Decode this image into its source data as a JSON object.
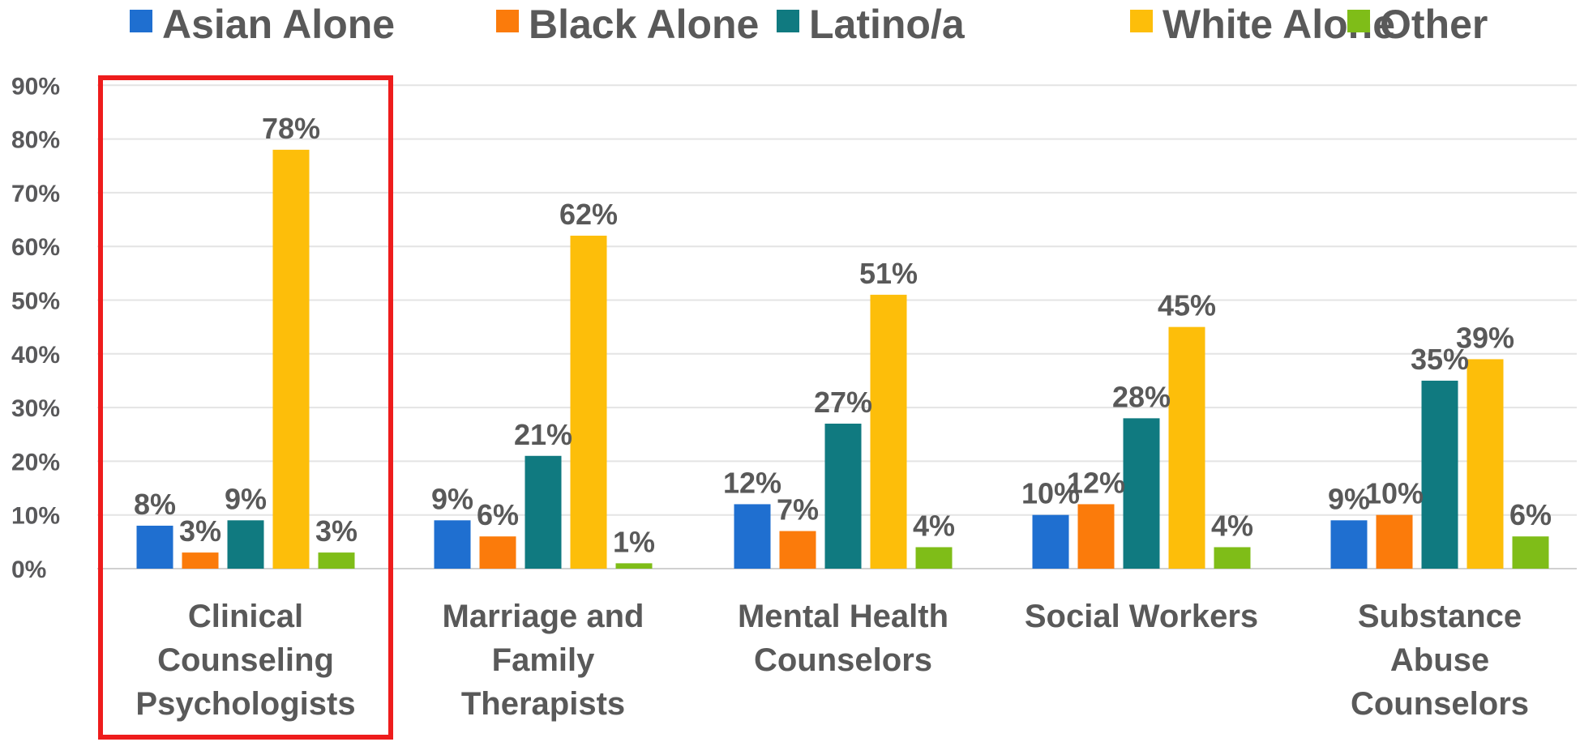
{
  "chart_data": {
    "type": "bar",
    "title": "",
    "xlabel": "",
    "ylabel": "",
    "ylim": [
      0,
      90
    ],
    "yticks": [
      "0%",
      "10%",
      "20%",
      "30%",
      "40%",
      "50%",
      "60%",
      "70%",
      "80%",
      "90%"
    ],
    "grid": true,
    "legend_position": "top",
    "highlighted_category": "Clinical Counseling Psychologists",
    "highlight_color": "#ee1c1c",
    "categories": [
      "Clinical Counseling Psychologists",
      "Marriage and Family Therapists",
      "Mental Health Counselors",
      "Social Workers",
      "Substance Abuse Counselors"
    ],
    "category_lines": [
      [
        "Clinical",
        "Counseling",
        "Psychologists"
      ],
      [
        "Marriage and",
        "Family",
        "Therapists"
      ],
      [
        "Mental Health",
        "Counselors"
      ],
      [
        "Social Workers"
      ],
      [
        "Substance",
        "Abuse",
        "Counselors"
      ]
    ],
    "series": [
      {
        "name": "Asian Alone",
        "color": "#1f6fd0",
        "values": [
          8,
          9,
          12,
          10,
          9
        ],
        "labels": [
          "8%",
          "9%",
          "12%",
          "10%",
          "9%"
        ]
      },
      {
        "name": "Black Alone",
        "color": "#fb7b0b",
        "values": [
          3,
          6,
          7,
          12,
          10
        ],
        "labels": [
          "3%",
          "6%",
          "7%",
          "12%",
          "10%"
        ]
      },
      {
        "name": "Latino/a",
        "color": "#107a80",
        "values": [
          9,
          21,
          27,
          28,
          35
        ],
        "labels": [
          "9%",
          "21%",
          "27%",
          "28%",
          "35%"
        ]
      },
      {
        "name": "White Alone",
        "color": "#fdbe0a",
        "values": [
          78,
          62,
          51,
          45,
          39
        ],
        "labels": [
          "78%",
          "62%",
          "51%",
          "45%",
          "39%"
        ]
      },
      {
        "name": "Other",
        "color": "#7fbd18",
        "values": [
          3,
          1,
          4,
          4,
          6
        ],
        "labels": [
          "3%",
          "1%",
          "4%",
          "4%",
          "6%"
        ]
      }
    ]
  }
}
